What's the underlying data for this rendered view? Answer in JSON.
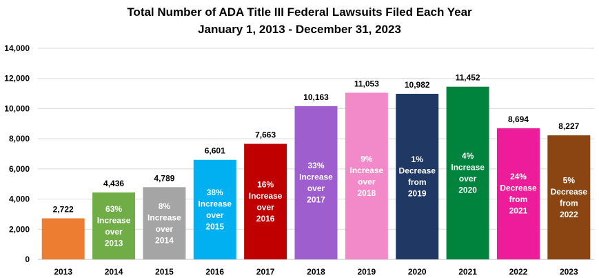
{
  "chart_data": {
    "type": "bar",
    "title": "Total Number of ADA Title III Federal Lawsuits Filed Each Year",
    "subtitle": "January 1, 2013 - December 31, 2023",
    "xlabel": "",
    "ylabel": "",
    "ylim": [
      0,
      14000
    ],
    "yticks": [
      "0",
      "2,000",
      "4,000",
      "6,000",
      "8,000",
      "10,000",
      "12,000",
      "14,000"
    ],
    "grid": true,
    "categories": [
      "2013",
      "2014",
      "2015",
      "2016",
      "2017",
      "2018",
      "2019",
      "2020",
      "2021",
      "2022",
      "2023"
    ],
    "values": [
      2722,
      4436,
      4789,
      6601,
      7663,
      10163,
      11053,
      10982,
      11452,
      8694,
      8227
    ],
    "value_labels": [
      "2,722",
      "4,436",
      "4,789",
      "6,601",
      "7,663",
      "10,163",
      "11,053",
      "10,982",
      "11,452",
      "8,694",
      "8,227"
    ],
    "colors": [
      "#ED7D31",
      "#70AD47",
      "#A5A5A5",
      "#00B0F0",
      "#C00000",
      "#9E5ECE",
      "#F28ACA",
      "#1F3864",
      "#00843D",
      "#EC1C9A",
      "#8B4513"
    ],
    "annotations": [
      [],
      [
        "63%",
        "Increase",
        "over",
        "2013"
      ],
      [
        "8%",
        "Increase",
        "over",
        "2014"
      ],
      [
        "38%",
        "Increase",
        "over",
        "2015"
      ],
      [
        "16%",
        "Increase",
        "over",
        "2016"
      ],
      [
        "33%",
        "Increase",
        "over",
        "2017"
      ],
      [
        "9%",
        "Increase",
        "over",
        "2018"
      ],
      [
        "1%",
        "Decrease",
        "from",
        "2019"
      ],
      [
        "4%",
        "Increase",
        "over",
        "2020"
      ],
      [
        "24%",
        "Decrease",
        "from",
        "2021"
      ],
      [
        "5%",
        "Decrease",
        "from",
        "2022"
      ]
    ]
  }
}
